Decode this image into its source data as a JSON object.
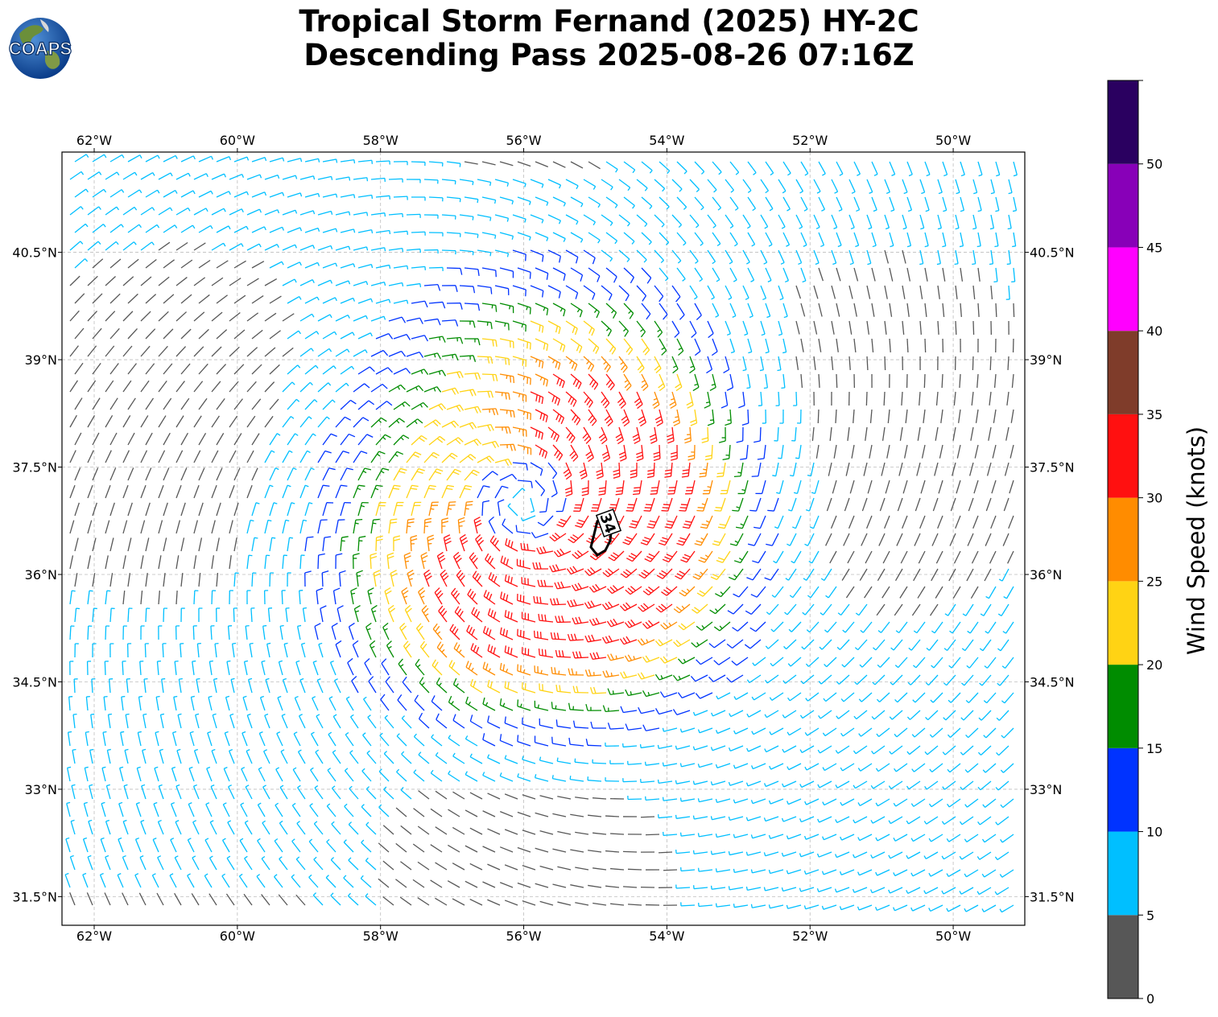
{
  "title": {
    "line1": "Tropical Storm Fernand (2025) HY-2C",
    "line2": "Descending Pass 2025-08-26 07:16Z"
  },
  "logo": {
    "text": "COAPS",
    "icon": "globe-logo-icon"
  },
  "map": {
    "lon_range": [
      -62.45,
      -49.0
    ],
    "lat_range": [
      31.1,
      41.9
    ],
    "lon_ticks": [
      {
        "value": -62,
        "label": "62°W"
      },
      {
        "value": -60,
        "label": "60°W"
      },
      {
        "value": -58,
        "label": "58°W"
      },
      {
        "value": -56,
        "label": "56°W"
      },
      {
        "value": -54,
        "label": "54°W"
      },
      {
        "value": -52,
        "label": "52°W"
      },
      {
        "value": -50,
        "label": "50°W"
      }
    ],
    "lat_ticks": [
      {
        "value": 31.5,
        "label": "31.5°N"
      },
      {
        "value": 33,
        "label": "33°N"
      },
      {
        "value": 34.5,
        "label": "34.5°N"
      },
      {
        "value": 36,
        "label": "36°N"
      },
      {
        "value": 37.5,
        "label": "37.5°N"
      },
      {
        "value": 39,
        "label": "39°N"
      },
      {
        "value": 40.5,
        "label": "40.5°N"
      }
    ],
    "grid": true,
    "storm_center": {
      "lon": -56.0,
      "lat": 37.0
    },
    "contour": {
      "value": 34,
      "label": "34"
    }
  },
  "colorbar": {
    "label": "Wind Speed (knots)",
    "bins": [
      {
        "min": 0,
        "max": 5,
        "color": "#575757"
      },
      {
        "min": 5,
        "max": 10,
        "color": "#00bfff"
      },
      {
        "min": 10,
        "max": 15,
        "color": "#0033ff"
      },
      {
        "min": 15,
        "max": 20,
        "color": "#008c00"
      },
      {
        "min": 20,
        "max": 25,
        "color": "#ffd314"
      },
      {
        "min": 25,
        "max": 30,
        "color": "#ff8c00"
      },
      {
        "min": 30,
        "max": 35,
        "color": "#ff1010"
      },
      {
        "min": 35,
        "max": 40,
        "color": "#7f3c2a"
      },
      {
        "min": 40,
        "max": 45,
        "color": "#ff00ff"
      },
      {
        "min": 45,
        "max": 50,
        "color": "#8800b8"
      },
      {
        "min": 50,
        "max": 55,
        "color": "#2a0060"
      }
    ],
    "ticks": [
      "0",
      "5",
      "10",
      "15",
      "20",
      "25",
      "30",
      "35",
      "40",
      "45",
      "50"
    ]
  }
}
